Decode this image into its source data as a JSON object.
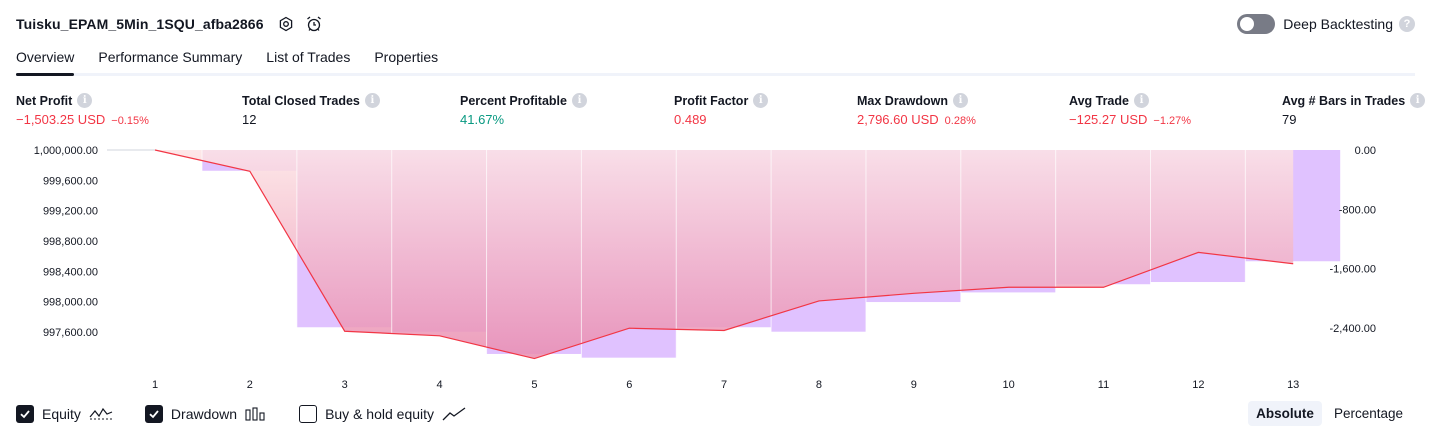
{
  "header": {
    "strategy_name": "Tuisku_EPAM_5Min_1SQU_afba2866",
    "deep_backtesting_label": "Deep Backtesting",
    "deep_backtesting_enabled": false
  },
  "tabs": [
    {
      "label": "Overview",
      "active": true
    },
    {
      "label": "Performance Summary",
      "active": false
    },
    {
      "label": "List of Trades",
      "active": false
    },
    {
      "label": "Properties",
      "active": false
    }
  ],
  "metrics": [
    {
      "title": "Net Profit",
      "value": "−1,503.25 USD",
      "sub": "−0.15%",
      "tone": "neg"
    },
    {
      "title": "Total Closed Trades",
      "value": "12",
      "sub": "",
      "tone": "neu"
    },
    {
      "title": "Percent Profitable",
      "value": "41.67%",
      "sub": "",
      "tone": "pos"
    },
    {
      "title": "Profit Factor",
      "value": "0.489",
      "sub": "",
      "tone": "neg"
    },
    {
      "title": "Max Drawdown",
      "value": "2,796.60 USD",
      "sub": "0.28%",
      "tone": "neg"
    },
    {
      "title": "Avg Trade",
      "value": "−125.27 USD",
      "sub": "−1.27%",
      "tone": "neg"
    },
    {
      "title": "Avg # Bars in Trades",
      "value": "79",
      "sub": "",
      "tone": "neu"
    }
  ],
  "chart_data": {
    "type": "line",
    "x": [
      1,
      2,
      3,
      4,
      5,
      6,
      7,
      8,
      9,
      10,
      11,
      12,
      13
    ],
    "x_tick_labels": [
      "1",
      "2",
      "3",
      "4",
      "5",
      "6",
      "7",
      "8",
      "9",
      "10",
      "11",
      "12",
      "13"
    ],
    "series": [
      {
        "name": "Equity",
        "axis": "left",
        "kind": "line",
        "values": [
          1000000.0,
          999720,
          997610,
          997550,
          997250,
          997650,
          997620,
          998010,
          998110,
          998190,
          998190,
          998650,
          998500
        ]
      },
      {
        "name": "Drawdown",
        "axis": "right",
        "kind": "bar",
        "values": [
          0,
          -280,
          -2390,
          -2450,
          -2750,
          -2800,
          -2390,
          -2450,
          -2050,
          -1920,
          -1810,
          -1780,
          -1500
        ]
      }
    ],
    "left_axis": {
      "range": [
        997400,
        1000000
      ],
      "ticks": [
        "1,000,000.00",
        "999,600.00",
        "999,200.00",
        "998,800.00",
        "998,400.00",
        "998,000.00",
        "997,600.00"
      ],
      "tick_values": [
        1000000,
        999600,
        999200,
        998800,
        998400,
        998000,
        997600
      ]
    },
    "right_axis": {
      "range": [
        -2800,
        0
      ],
      "ticks": [
        "0.00",
        "-800.00",
        "-1,600.00",
        "-2,400.00"
      ],
      "tick_values": [
        0,
        -800,
        -1600,
        -2400
      ]
    },
    "colors": {
      "equity_line": "#f23645",
      "drawdown_bar": "#e0c2ff",
      "equity_fill_top": "#fde3e4",
      "equity_fill_bottom": "#e98cb0"
    }
  },
  "legend": {
    "items": [
      {
        "label": "Equity",
        "checked": true,
        "icon": "equity-line-icon"
      },
      {
        "label": "Drawdown",
        "checked": true,
        "icon": "drawdown-bars-icon"
      },
      {
        "label": "Buy & hold equity",
        "checked": false,
        "icon": "buy-hold-line-icon"
      }
    ],
    "modes": [
      {
        "label": "Absolute",
        "active": true
      },
      {
        "label": "Percentage",
        "active": false
      }
    ]
  }
}
